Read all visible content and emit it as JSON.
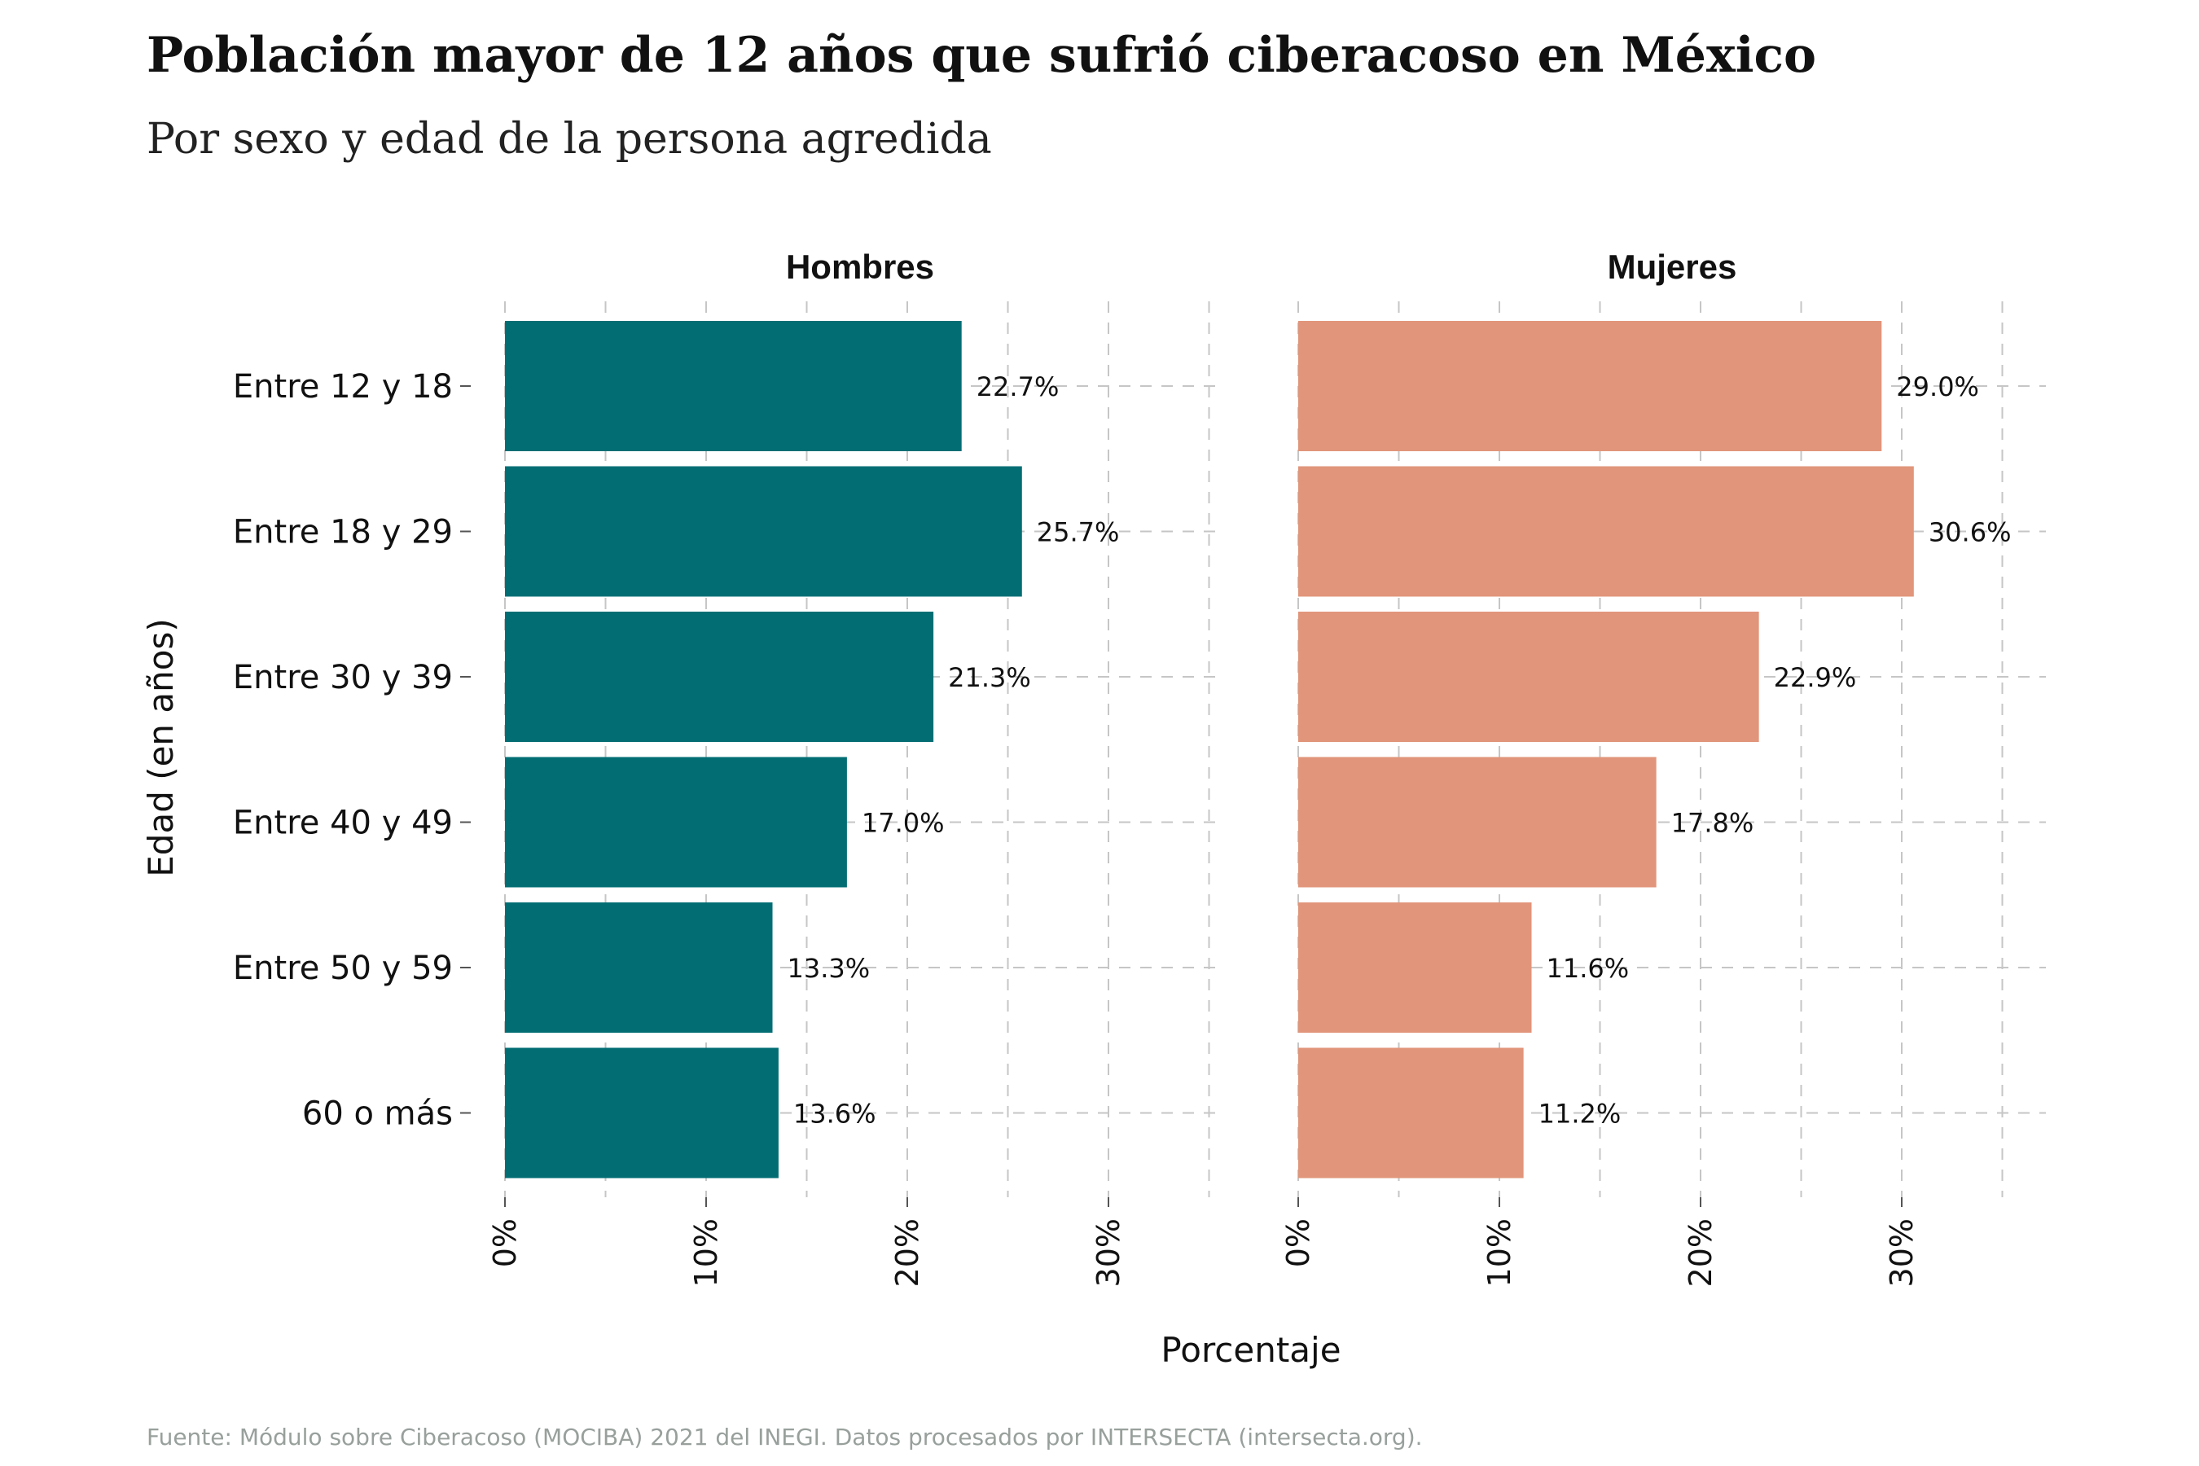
{
  "chart_data": {
    "type": "bar",
    "orientation": "horizontal",
    "title": "Población mayor de 12 años que sufrió ciberacoso en México",
    "subtitle": "Por sexo y edad de la persona agredida",
    "xlabel": "Porcentaje",
    "ylabel": "Edad (en años)",
    "caption": "Fuente: Módulo sobre Ciberacoso (MOCIBA) 2021 del INEGI. Datos procesados por INTERSECTA (intersecta.org).",
    "categories": [
      "Entre 12 y 18",
      "Entre 18 y 29",
      "Entre 30 y 39",
      "Entre 40 y 49",
      "Entre 50 y 59",
      "60 o más"
    ],
    "xlim": [
      0,
      35
    ],
    "x_ticks": [
      0,
      10,
      20,
      30
    ],
    "x_tick_labels": [
      "0%",
      "10%",
      "20%",
      "30%"
    ],
    "grid": true,
    "facets": [
      {
        "name": "Hombres",
        "color": "#026e74",
        "values": [
          22.7,
          25.7,
          21.3,
          17.0,
          13.3,
          13.6
        ],
        "labels": [
          "22.7%",
          "25.7%",
          "21.3%",
          "17.0%",
          "13.3%",
          "13.6%"
        ]
      },
      {
        "name": "Mujeres",
        "color": "#e1957a",
        "values": [
          29.0,
          30.6,
          22.9,
          17.8,
          11.6,
          11.2
        ],
        "labels": [
          "29.0%",
          "30.6%",
          "22.9%",
          "17.8%",
          "11.6%",
          "11.2%"
        ]
      }
    ]
  }
}
